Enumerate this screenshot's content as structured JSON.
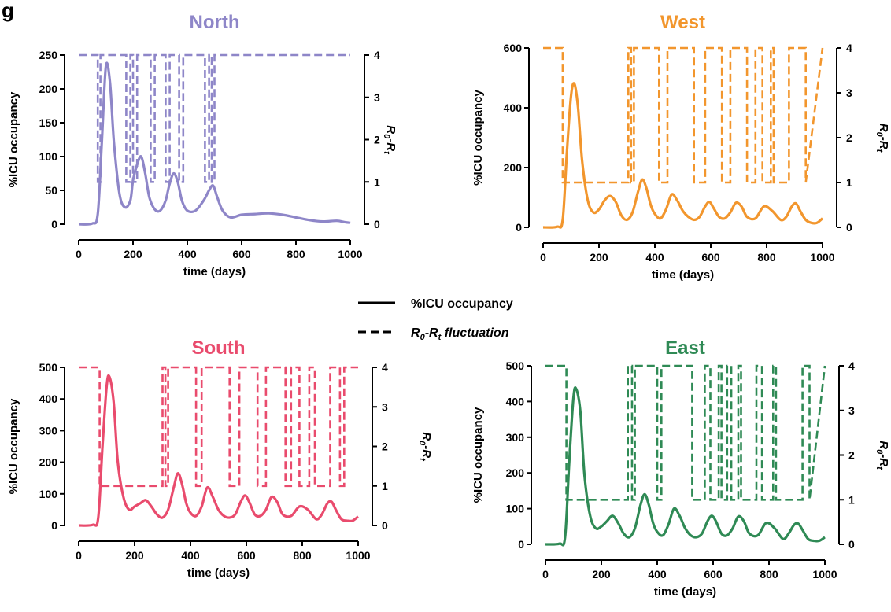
{
  "figure_label": "g",
  "legend": {
    "solid_label": "%ICU occupancy",
    "dashed_label_main": "R",
    "dashed_sub0": "0",
    "dashed_sep": "-R",
    "dashed_subt": "t",
    "dashed_label_tail": " fluctuation"
  },
  "chart_data": [
    {
      "type": "line",
      "title": "North",
      "color": "#8e86c8",
      "xlabel": "time (days)",
      "ylabel": "%ICU occupancy",
      "y2label": "R0-Rt",
      "xlim": [
        0,
        1000
      ],
      "ylim": [
        0,
        250
      ],
      "y2lim": [
        0,
        4
      ],
      "xticks": [
        0,
        200,
        400,
        600,
        800,
        1000
      ],
      "yticks": [
        0,
        50,
        100,
        150,
        200,
        250
      ],
      "y2ticks": [
        0,
        1,
        2,
        3,
        4
      ],
      "series": [
        {
          "x": [
            0,
            50,
            70,
            85,
            100,
            115,
            130,
            150,
            170,
            190,
            200,
            215,
            230,
            245,
            260,
            280,
            300,
            320,
            335,
            350,
            365,
            380,
            400,
            430,
            460,
            480,
            495,
            510,
            530,
            560,
            600,
            650,
            700,
            750,
            800,
            850,
            900,
            950,
            980,
            1000
          ],
          "y": [
            0,
            1,
            15,
            120,
            233,
            210,
            120,
            45,
            25,
            35,
            65,
            88,
            100,
            75,
            40,
            22,
            20,
            35,
            60,
            75,
            62,
            35,
            20,
            20,
            35,
            50,
            57,
            40,
            20,
            10,
            14,
            15,
            16,
            14,
            10,
            6,
            4,
            5,
            3,
            2
          ]
        },
        {
          "x": [
            0,
            70,
            70,
            80,
            80,
            175,
            175,
            190,
            190,
            200,
            200,
            215,
            215,
            265,
            265,
            280,
            280,
            320,
            320,
            335,
            335,
            370,
            370,
            385,
            385,
            465,
            465,
            480,
            480,
            490,
            490,
            500,
            500,
            1000
          ],
          "y": [
            4,
            4,
            1,
            1,
            4,
            4,
            1,
            1,
            4,
            4,
            1,
            1,
            4,
            4,
            1,
            1,
            4,
            4,
            1,
            1,
            4,
            4,
            1,
            1,
            4,
            4,
            1,
            1,
            4,
            4,
            1,
            1,
            4,
            4
          ]
        }
      ]
    },
    {
      "type": "line",
      "title": "West",
      "color": "#f2962d",
      "xlabel": "time (days)",
      "ylabel": "%ICU occupancy",
      "y2label": "R0-Rt",
      "xlim": [
        0,
        1000
      ],
      "ylim": [
        0,
        600
      ],
      "y2lim": [
        0,
        4
      ],
      "xticks": [
        0,
        200,
        400,
        600,
        800,
        1000
      ],
      "yticks": [
        0,
        200,
        400,
        600
      ],
      "y2ticks": [
        0,
        1,
        2,
        3,
        4
      ],
      "series": [
        {
          "x": [
            0,
            50,
            70,
            85,
            100,
            112,
            125,
            140,
            160,
            180,
            200,
            220,
            240,
            260,
            280,
            300,
            320,
            340,
            355,
            370,
            385,
            400,
            420,
            440,
            460,
            480,
            500,
            520,
            540,
            560,
            580,
            595,
            610,
            630,
            650,
            670,
            690,
            710,
            730,
            760,
            790,
            820,
            850,
            870,
            890,
            905,
            920,
            940,
            960,
            980,
            1000
          ],
          "y": [
            0,
            2,
            25,
            250,
            440,
            480,
            400,
            220,
            90,
            50,
            60,
            90,
            105,
            85,
            40,
            25,
            50,
            120,
            160,
            130,
            75,
            45,
            30,
            60,
            110,
            90,
            55,
            35,
            25,
            35,
            70,
            85,
            65,
            35,
            30,
            50,
            82,
            70,
            35,
            30,
            70,
            55,
            25,
            35,
            70,
            80,
            55,
            25,
            15,
            15,
            30
          ]
        },
        {
          "x": [
            0,
            70,
            70,
            75,
            75,
            305,
            305,
            315,
            315,
            325,
            325,
            415,
            415,
            445,
            445,
            540,
            540,
            580,
            580,
            640,
            640,
            670,
            670,
            730,
            730,
            760,
            760,
            785,
            785,
            815,
            815,
            825,
            825,
            865,
            865,
            880,
            880,
            940,
            940,
            1000
          ],
          "y": [
            4,
            4,
            1,
            1,
            1,
            1,
            4,
            4,
            1,
            1,
            4,
            4,
            1,
            1,
            4,
            4,
            1,
            1,
            4,
            4,
            1,
            1,
            4,
            4,
            1,
            1,
            4,
            4,
            1,
            1,
            4,
            4,
            1,
            1,
            1,
            1,
            4,
            4,
            1,
            4
          ]
        }
      ]
    },
    {
      "type": "line",
      "title": "South",
      "color": "#e94b6d",
      "xlabel": "time (days)",
      "ylabel": "%ICU occupancy",
      "y2label": "R0-Rt",
      "xlim": [
        0,
        1000
      ],
      "ylim": [
        0,
        500
      ],
      "y2lim": [
        0,
        4
      ],
      "xticks": [
        0,
        200,
        400,
        600,
        800,
        1000
      ],
      "yticks": [
        0,
        100,
        200,
        300,
        400,
        500
      ],
      "y2ticks": [
        0,
        1,
        2,
        3,
        4
      ],
      "series": [
        {
          "x": [
            0,
            50,
            70,
            85,
            100,
            110,
            125,
            140,
            160,
            180,
            200,
            220,
            240,
            260,
            280,
            300,
            320,
            340,
            355,
            370,
            385,
            400,
            420,
            440,
            460,
            480,
            500,
            520,
            540,
            560,
            580,
            595,
            610,
            630,
            650,
            670,
            690,
            710,
            730,
            760,
            790,
            820,
            850,
            870,
            890,
            905,
            920,
            940,
            960,
            980,
            1000
          ],
          "y": [
            0,
            2,
            25,
            250,
            440,
            470,
            390,
            200,
            90,
            50,
            60,
            70,
            80,
            60,
            35,
            25,
            50,
            120,
            165,
            130,
            70,
            40,
            30,
            60,
            120,
            90,
            50,
            30,
            25,
            35,
            75,
            95,
            75,
            35,
            30,
            50,
            90,
            75,
            35,
            30,
            60,
            50,
            20,
            35,
            70,
            75,
            50,
            20,
            15,
            15,
            28
          ]
        },
        {
          "x": [
            0,
            75,
            75,
            80,
            80,
            300,
            300,
            310,
            310,
            320,
            320,
            420,
            420,
            440,
            440,
            540,
            540,
            575,
            575,
            640,
            640,
            670,
            670,
            740,
            740,
            760,
            760,
            790,
            790,
            825,
            825,
            845,
            845,
            870,
            870,
            900,
            900,
            935,
            935,
            950,
            950,
            1000
          ],
          "y": [
            4,
            4,
            1,
            1,
            1,
            1,
            4,
            4,
            1,
            1,
            4,
            4,
            1,
            1,
            4,
            4,
            1,
            1,
            4,
            4,
            1,
            1,
            4,
            4,
            1,
            1,
            4,
            4,
            1,
            1,
            4,
            4,
            1,
            1,
            1,
            1,
            4,
            4,
            1,
            1,
            4,
            4
          ]
        }
      ]
    },
    {
      "type": "line",
      "title": "East",
      "color": "#2f8a55",
      "xlabel": "time (days)",
      "ylabel": "%ICU occupancy",
      "y2label": "R0-Rt",
      "xlim": [
        0,
        1000
      ],
      "ylim": [
        0,
        500
      ],
      "y2lim": [
        0,
        4
      ],
      "xticks": [
        0,
        200,
        400,
        600,
        800,
        1000
      ],
      "yticks": [
        0,
        100,
        200,
        300,
        400,
        500
      ],
      "y2ticks": [
        0,
        1,
        2,
        3,
        4
      ],
      "series": [
        {
          "x": [
            0,
            50,
            70,
            85,
            100,
            110,
            125,
            140,
            160,
            180,
            200,
            220,
            240,
            260,
            280,
            300,
            320,
            340,
            355,
            370,
            385,
            400,
            420,
            440,
            460,
            480,
            500,
            520,
            540,
            560,
            580,
            595,
            610,
            630,
            650,
            670,
            690,
            710,
            730,
            760,
            790,
            820,
            850,
            870,
            890,
            905,
            920,
            940,
            960,
            980,
            1000
          ],
          "y": [
            0,
            2,
            20,
            230,
            410,
            435,
            370,
            190,
            80,
            45,
            50,
            65,
            80,
            60,
            30,
            20,
            45,
            110,
            140,
            110,
            60,
            35,
            25,
            55,
            100,
            80,
            45,
            25,
            20,
            30,
            65,
            80,
            65,
            30,
            25,
            45,
            78,
            65,
            30,
            25,
            60,
            45,
            15,
            30,
            55,
            58,
            40,
            15,
            10,
            10,
            20
          ]
        },
        {
          "x": [
            0,
            75,
            75,
            80,
            80,
            295,
            295,
            310,
            310,
            320,
            320,
            400,
            400,
            415,
            415,
            525,
            525,
            570,
            570,
            590,
            590,
            620,
            620,
            630,
            630,
            650,
            650,
            665,
            665,
            690,
            690,
            700,
            700,
            755,
            755,
            775,
            775,
            815,
            815,
            825,
            825,
            920,
            920,
            945,
            945,
            1000
          ],
          "y": [
            4,
            4,
            1,
            1,
            1,
            1,
            4,
            4,
            1,
            1,
            4,
            4,
            1,
            1,
            4,
            4,
            1,
            1,
            4,
            4,
            1,
            1,
            4,
            4,
            1,
            1,
            4,
            4,
            1,
            1,
            4,
            4,
            1,
            1,
            4,
            4,
            1,
            1,
            4,
            4,
            1,
            1,
            4,
            4,
            1,
            4
          ]
        }
      ]
    }
  ]
}
